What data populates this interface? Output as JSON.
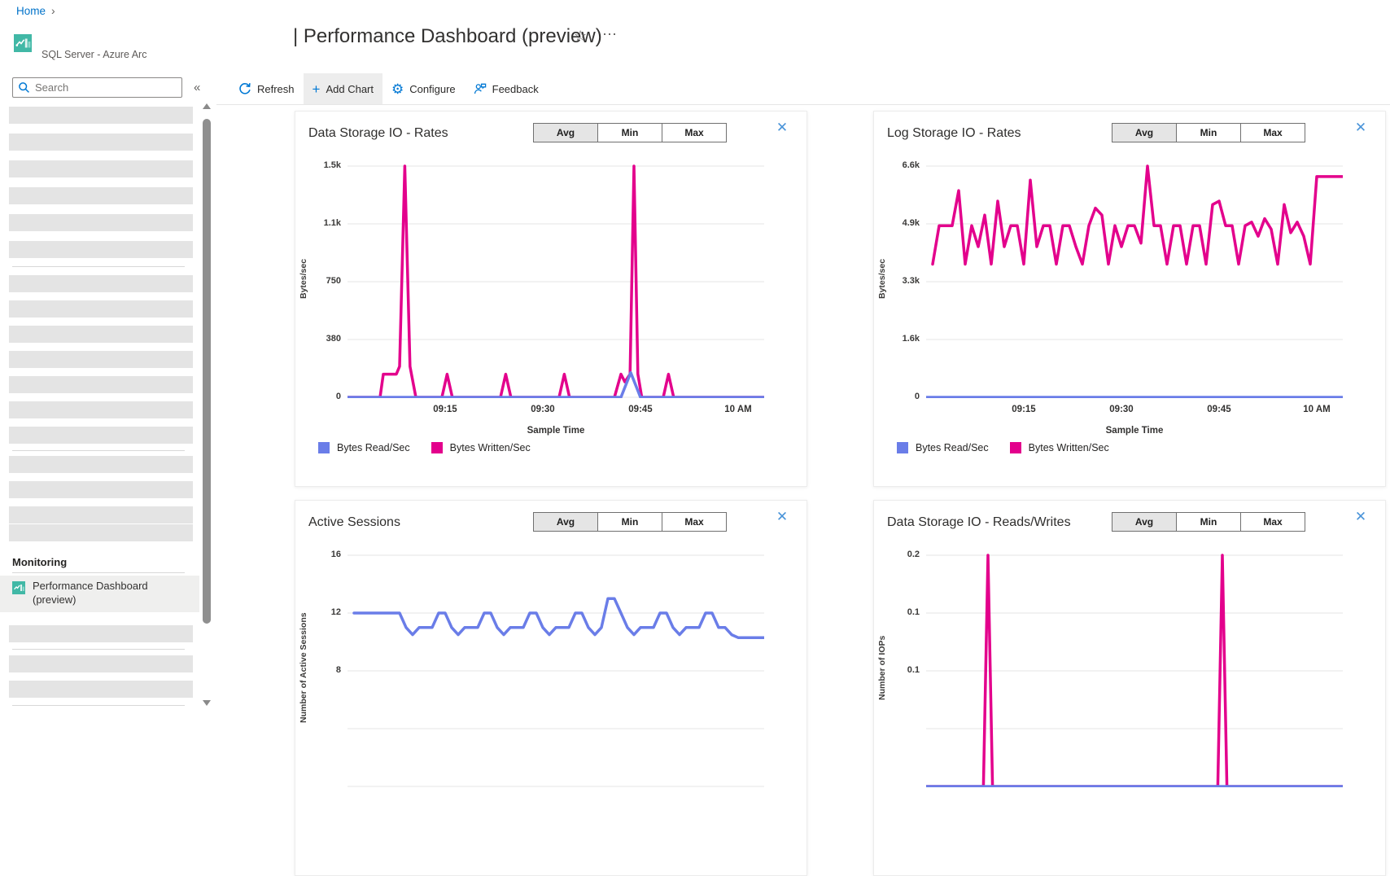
{
  "breadcrumb": {
    "home": "Home",
    "chevron": "›"
  },
  "app": {
    "name": "SQL Server - Azure Arc"
  },
  "sidebar": {
    "search_placeholder": "Search",
    "collapse_glyph": "«",
    "monitoring_header": "Monitoring",
    "monitoring_item": "Performance Dashboard (preview)"
  },
  "header": {
    "title": "| Performance Dashboard (preview)",
    "star_glyph": "☆",
    "more_glyph": "⋯"
  },
  "toolbar": {
    "refresh": "Refresh",
    "add_chart": "Add Chart",
    "configure": "Configure",
    "feedback": "Feedback"
  },
  "chart_controls": {
    "agg_buttons": [
      "Avg",
      "Min",
      "Max"
    ],
    "selected": "Avg",
    "close_glyph": "✕"
  },
  "colors": {
    "accent_blue": "#0078d4",
    "series_blue": "#6a7de8",
    "series_magenta": "#e3008c",
    "close_blue": "#4a94d9",
    "app_icon_teal": "#41b8a6",
    "gridline": "#e4e4e4",
    "skeleton_gray": "#e4e4e4"
  },
  "chart_data": [
    {
      "type": "line",
      "title": "Data Storage IO - Rates",
      "ylabel": "Bytes/sec",
      "xlabel": "Sample Time",
      "ylim": [
        0,
        1500
      ],
      "ytick_labels": [
        "1.5k",
        "1.1k",
        "750",
        "380",
        "0"
      ],
      "xticks": [
        "09:15",
        "09:30",
        "09:45",
        "10 AM"
      ],
      "x_unit": "minutes after 09:00",
      "show_legend": true,
      "series": [
        {
          "name": "Bytes Read/Sec",
          "color": "#6a7de8",
          "x": [
            0,
            42,
            43.5,
            45,
            60
          ],
          "values": [
            0,
            0,
            160,
            0,
            0
          ]
        },
        {
          "name": "Bytes Written/Sec",
          "color": "#e3008c",
          "x": [
            0,
            5,
            5.5,
            7.5,
            8,
            8.8,
            9.6,
            10.5,
            14.5,
            15.3,
            16.1,
            23.5,
            24.3,
            25.1,
            32.5,
            33.3,
            34.1,
            41,
            42,
            42.6,
            43.4,
            44,
            44.6,
            45.2,
            48.5,
            49.3,
            50.1,
            60
          ],
          "values": [
            0,
            0,
            150,
            150,
            200,
            1500,
            200,
            0,
            0,
            150,
            0,
            0,
            150,
            0,
            0,
            150,
            0,
            0,
            150,
            100,
            150,
            1500,
            150,
            0,
            0,
            150,
            0,
            0
          ]
        }
      ]
    },
    {
      "type": "line",
      "title": "Log Storage IO - Rates",
      "ylabel": "Bytes/sec",
      "xlabel": "Sample Time",
      "ylim": [
        0,
        6600
      ],
      "ytick_labels": [
        "6.6k",
        "4.9k",
        "3.3k",
        "1.6k",
        "0"
      ],
      "xticks": [
        "09:15",
        "09:30",
        "09:45",
        "10 AM"
      ],
      "x_unit": "minutes after 09:00",
      "show_legend": true,
      "series": [
        {
          "name": "Bytes Read/Sec",
          "color": "#6a7de8",
          "x": [
            0,
            60
          ],
          "values": [
            0,
            0
          ]
        },
        {
          "name": "Bytes Written/Sec",
          "color": "#e3008c",
          "x": [
            1,
            2,
            3,
            4,
            5,
            6,
            7,
            8,
            9,
            10,
            11,
            12,
            13,
            14,
            15,
            16,
            17,
            18,
            19,
            20,
            21,
            22,
            23,
            24,
            25,
            26,
            27,
            28,
            29,
            30,
            31,
            32,
            33,
            34,
            35,
            36,
            37,
            38,
            39,
            40,
            41,
            42,
            43,
            44,
            45,
            46,
            47,
            48,
            49,
            50,
            51,
            52,
            53,
            54,
            55,
            56,
            57,
            58,
            59,
            60
          ],
          "values": [
            3800,
            4900,
            4900,
            4900,
            5900,
            3800,
            4900,
            4300,
            5200,
            3800,
            5600,
            4300,
            4900,
            4900,
            3800,
            6200,
            4300,
            4900,
            4900,
            3800,
            4900,
            4900,
            4300,
            3800,
            4900,
            5400,
            5200,
            3800,
            4900,
            4300,
            4900,
            4900,
            4400,
            6600,
            4900,
            4900,
            3800,
            4900,
            4900,
            3800,
            4900,
            4900,
            3800,
            5500,
            5600,
            4900,
            4900,
            3800,
            4900,
            5000,
            4600,
            5100,
            4800,
            3800,
            5500,
            4700,
            5000,
            4600,
            3800,
            6300
          ]
        }
      ]
    },
    {
      "type": "line",
      "title": "Active Sessions",
      "ylabel": "Number of Active Sessions",
      "ylim": [
        0,
        16
      ],
      "ytick_labels": [
        "16",
        "12",
        "8"
      ],
      "x_unit": "minutes after 09:00",
      "show_legend": false,
      "series": [
        {
          "name": "Active Sessions",
          "color": "#6a7de8",
          "x": [
            1,
            2,
            3,
            4,
            5,
            6,
            7,
            8,
            9,
            10,
            11,
            12,
            13,
            14,
            15,
            16,
            17,
            18,
            19,
            20,
            21,
            22,
            23,
            24,
            25,
            26,
            27,
            28,
            29,
            30,
            31,
            32,
            33,
            34,
            35,
            36,
            37,
            38,
            39,
            40,
            41,
            42,
            43,
            44,
            45,
            46,
            47,
            48,
            49,
            50,
            51,
            52,
            53,
            54,
            55,
            56,
            57,
            58,
            59,
            60
          ],
          "values": [
            12,
            12,
            12,
            12,
            12,
            12,
            12,
            12,
            11,
            10.5,
            11,
            11,
            11,
            12,
            12,
            11,
            10.5,
            11,
            11,
            11,
            12,
            12,
            11,
            10.5,
            11,
            11,
            11,
            12,
            12,
            11,
            10.5,
            11,
            11,
            11,
            12,
            12,
            11,
            10.5,
            11,
            13,
            13,
            12,
            11,
            10.5,
            11,
            11,
            11,
            12,
            12,
            11,
            10.5,
            11,
            11,
            11,
            12,
            12,
            11,
            11,
            10.5,
            10.3
          ]
        }
      ]
    },
    {
      "type": "line",
      "title": "Data Storage IO - Reads/Writes",
      "ylabel": "Number of IOPs",
      "ylim": [
        0,
        0.2
      ],
      "ytick_labels": [
        "0.2",
        "0.1",
        "0.1"
      ],
      "x_unit": "minutes after 09:00",
      "show_legend": false,
      "series": [
        {
          "name": "Reads",
          "color": "#6a7de8",
          "x": [
            0,
            60
          ],
          "values": [
            0,
            0
          ]
        },
        {
          "name": "Writes",
          "color": "#e3008c",
          "x": [
            0,
            8.8,
            9.5,
            10.2,
            44.8,
            45.5,
            46.2,
            60
          ],
          "values": [
            0,
            0,
            0.2,
            0,
            0,
            0.2,
            0,
            0
          ]
        }
      ]
    }
  ]
}
